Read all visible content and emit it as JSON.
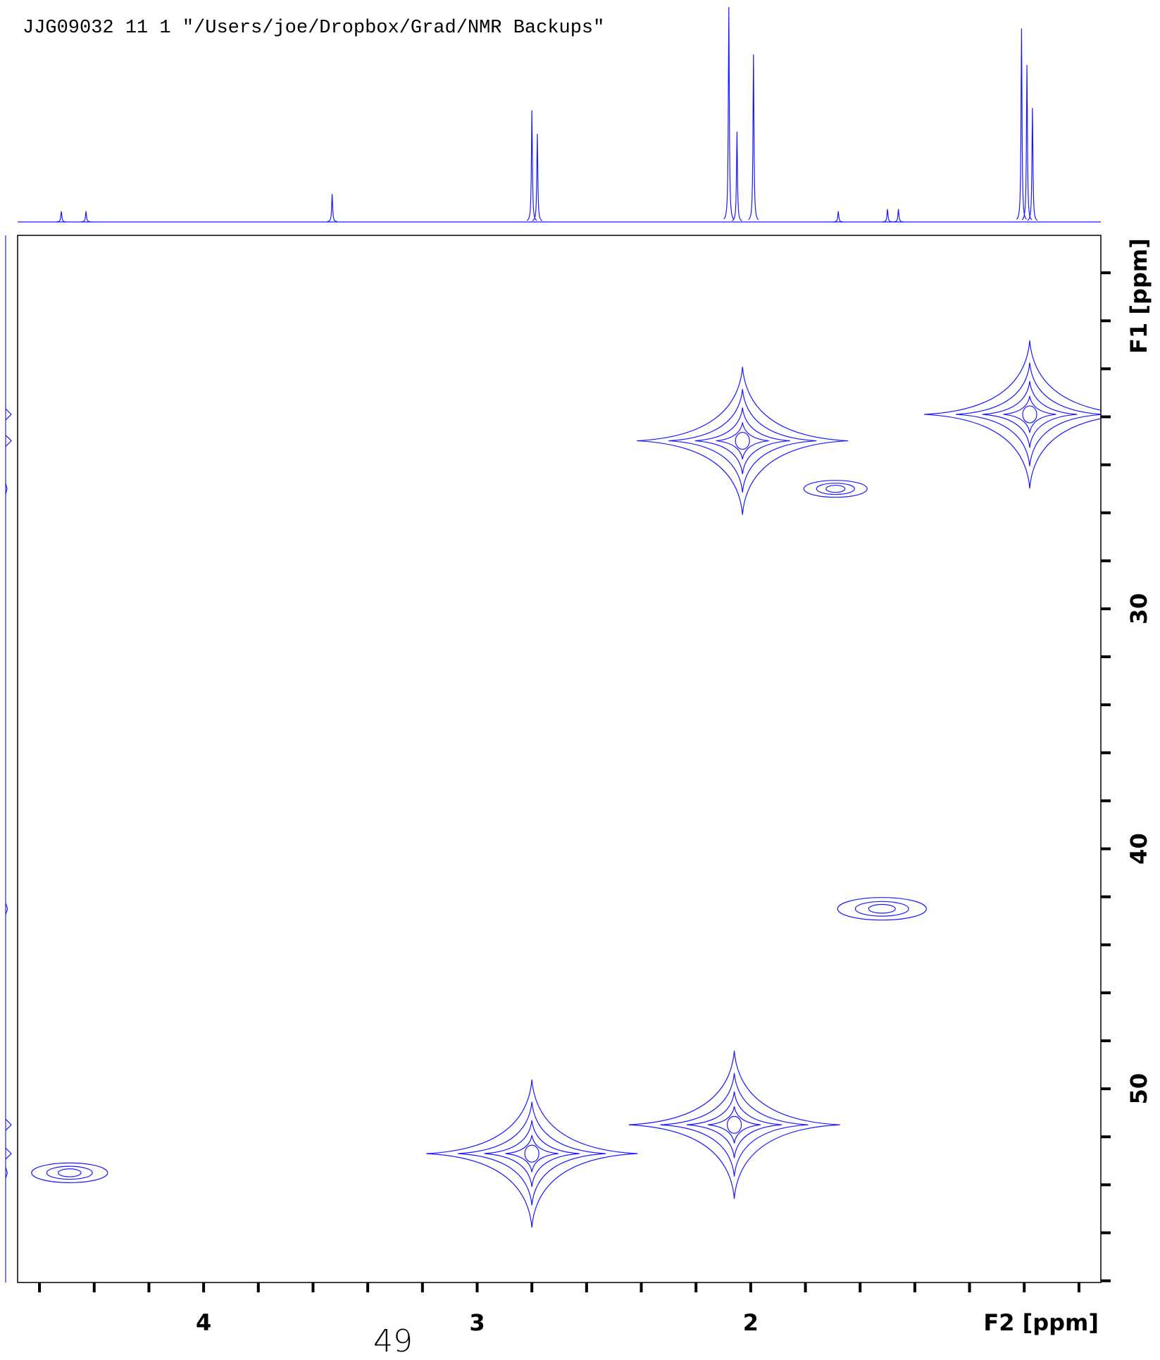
{
  "chart_data": {
    "type": "contour",
    "title": "JJG09032  11  1  \"/Users/joe/Dropbox/Grad/NMR Backups\"",
    "page_number": "49",
    "xlabel": "F2 [ppm]",
    "ylabel": "F1 [ppm]",
    "xlim": [
      4.68,
      0.72
    ],
    "ylim": [
      14.44,
      58.07
    ],
    "xticks": [
      4,
      3,
      2
    ],
    "yticks": [
      30,
      40,
      50
    ],
    "xtick_marks": [
      4.6,
      4.4,
      4.2,
      4.0,
      3.8,
      3.6,
      3.4,
      3.2,
      3.0,
      2.8,
      2.6,
      2.4,
      2.2,
      2.0,
      1.8,
      1.6,
      1.4,
      1.2,
      1.0,
      0.8
    ],
    "ytick_marks": [
      16,
      18,
      20,
      22,
      24,
      26,
      28,
      30,
      32,
      34,
      36,
      38,
      40,
      42,
      44,
      46,
      48,
      50,
      52,
      54,
      56,
      58
    ],
    "color": "#1a1aff",
    "cross_peaks": [
      {
        "f2": 2.03,
        "f1": 23.0,
        "intensity": 100
      },
      {
        "f2": 0.98,
        "f1": 21.9,
        "intensity": 100
      },
      {
        "f2": 1.69,
        "f1": 25.0,
        "intensity": 25
      },
      {
        "f2": 1.52,
        "f1": 42.5,
        "intensity": 35
      },
      {
        "f2": 2.06,
        "f1": 51.5,
        "intensity": 100
      },
      {
        "f2": 2.8,
        "f1": 52.7,
        "intensity": 100
      },
      {
        "f2": 4.49,
        "f1": 53.5,
        "intensity": 30
      }
    ],
    "f2_projection": {
      "x": [
        4.52,
        4.43,
        3.53,
        2.8,
        2.78,
        2.08,
        2.05,
        1.99,
        1.68,
        1.5,
        1.46,
        1.01,
        0.99,
        0.97
      ],
      "intensity": [
        5,
        5,
        13,
        52,
        41,
        100,
        42,
        78,
        5,
        6,
        6,
        90,
        73,
        53
      ]
    }
  }
}
